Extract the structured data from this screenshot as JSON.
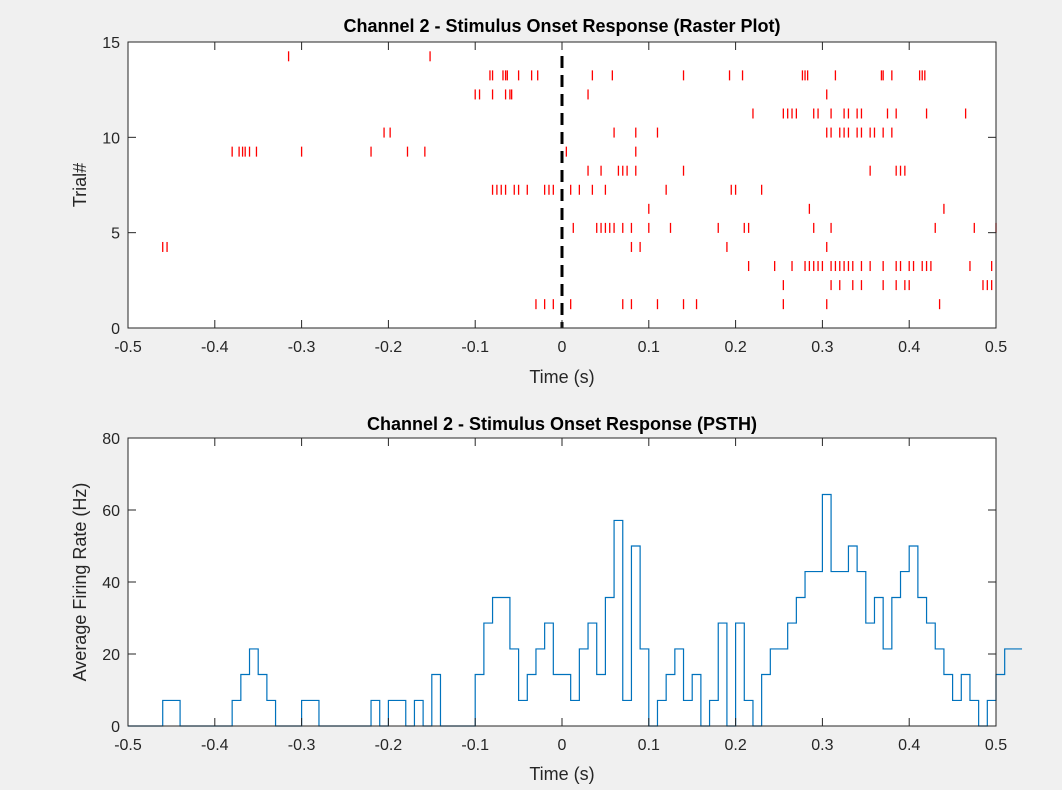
{
  "chart_data": [
    {
      "type": "scatter",
      "title": "Channel 2 - Stimulus Onset Response (Raster Plot)",
      "xlabel": "Time (s)",
      "ylabel": "Trial#",
      "xlim": [
        -0.5,
        0.5
      ],
      "ylim": [
        0,
        15
      ],
      "xticks": [
        "-0.5",
        "-0.4",
        "-0.3",
        "-0.2",
        "-0.1",
        "0",
        "0.1",
        "0.2",
        "0.3",
        "0.4",
        "0.5"
      ],
      "yticks": [
        "0",
        "5",
        "10",
        "15"
      ],
      "grid": false,
      "marker": "|",
      "marker_color": "#ff0000",
      "onset_line": {
        "x": 0,
        "style": "dashed",
        "color": "#000000"
      },
      "trials": [
        {
          "trial": 1,
          "spikes": [
            -0.03,
            -0.02,
            -0.01,
            0.01,
            0.07,
            0.08,
            0.11,
            0.14,
            0.155,
            0.255,
            0.305,
            0.435
          ]
        },
        {
          "trial": 2,
          "spikes": [
            0.255,
            0.31,
            0.32,
            0.335,
            0.345,
            0.37,
            0.385,
            0.395,
            0.4,
            0.485,
            0.49,
            0.495
          ]
        },
        {
          "trial": 3,
          "spikes": [
            0.215,
            0.245,
            0.265,
            0.28,
            0.285,
            0.29,
            0.295,
            0.3,
            0.31,
            0.315,
            0.32,
            0.325,
            0.33,
            0.335,
            0.345,
            0.355,
            0.37,
            0.385,
            0.39,
            0.4,
            0.405,
            0.415,
            0.42,
            0.425,
            0.47,
            0.495
          ]
        },
        {
          "trial": 4,
          "spikes": [
            -0.46,
            -0.455,
            0.08,
            0.09,
            0.19,
            0.305
          ]
        },
        {
          "trial": 5,
          "spikes": [
            0.013,
            0.04,
            0.045,
            0.05,
            0.055,
            0.06,
            0.07,
            0.08,
            0.1,
            0.125,
            0.18,
            0.21,
            0.215,
            0.29,
            0.31,
            0.43,
            0.475,
            0.5
          ]
        },
        {
          "trial": 6,
          "spikes": [
            0.1,
            0.285,
            0.44
          ]
        },
        {
          "trial": 7,
          "spikes": [
            -0.08,
            -0.075,
            -0.07,
            -0.065,
            -0.055,
            -0.05,
            -0.04,
            -0.02,
            -0.015,
            -0.01,
            0.01,
            0.02,
            0.035,
            0.05,
            0.12,
            0.195,
            0.2,
            0.23
          ]
        },
        {
          "trial": 8,
          "spikes": [
            0.03,
            0.045,
            0.065,
            0.07,
            0.075,
            0.085,
            0.14,
            0.355,
            0.385,
            0.39,
            0.395
          ]
        },
        {
          "trial": 9,
          "spikes": [
            -0.38,
            -0.372,
            -0.368,
            -0.365,
            -0.36,
            -0.352,
            -0.3,
            -0.22,
            -0.178,
            -0.158,
            0.005,
            0.085
          ]
        },
        {
          "trial": 10,
          "spikes": [
            -0.205,
            -0.198,
            0.06,
            0.085,
            0.11,
            0.305,
            0.31,
            0.32,
            0.325,
            0.33,
            0.34,
            0.345,
            0.355,
            0.36,
            0.37,
            0.38
          ]
        },
        {
          "trial": 11,
          "spikes": [
            0.22,
            0.255,
            0.26,
            0.265,
            0.27,
            0.29,
            0.295,
            0.31,
            0.325,
            0.33,
            0.34,
            0.345,
            0.375,
            0.385,
            0.42,
            0.465
          ]
        },
        {
          "trial": 12,
          "spikes": [
            -0.1,
            -0.095,
            -0.08,
            -0.065,
            -0.06,
            -0.058,
            0.03,
            0.305
          ]
        },
        {
          "trial": 13,
          "spikes": [
            -0.083,
            -0.08,
            -0.068,
            -0.065,
            -0.063,
            -0.05,
            -0.035,
            -0.028,
            0.035,
            0.058,
            0.14,
            0.193,
            0.208,
            0.277,
            0.28,
            0.283,
            0.315,
            0.368,
            0.37,
            0.38,
            0.412,
            0.415,
            0.418
          ]
        },
        {
          "trial": 14,
          "spikes": [
            -0.315,
            -0.152
          ]
        }
      ]
    },
    {
      "type": "line",
      "style": "stairs",
      "title": "Channel 2 - Stimulus Onset Response (PSTH)",
      "xlabel": "Time (s)",
      "ylabel": "Average Firing Rate (Hz)",
      "xlim": [
        -0.5,
        0.5
      ],
      "ylim": [
        0,
        80
      ],
      "xticks": [
        "-0.5",
        "-0.4",
        "-0.3",
        "-0.2",
        "-0.1",
        "0",
        "0.1",
        "0.2",
        "0.3",
        "0.4",
        "0.5"
      ],
      "yticks": [
        "0",
        "20",
        "40",
        "60",
        "80"
      ],
      "grid": false,
      "line_color": "#0072bd",
      "bin_width": 0.01,
      "x_start": -0.48,
      "values": [
        0,
        0,
        7.1,
        7.1,
        0,
        0,
        0,
        0,
        0,
        0,
        7.1,
        14.3,
        21.4,
        14.3,
        7.1,
        0,
        0,
        0,
        7.1,
        7.1,
        0,
        0,
        0,
        0,
        0,
        0,
        7.1,
        0,
        7.1,
        7.1,
        0,
        7.1,
        0,
        14.3,
        0,
        0,
        0,
        0,
        14.3,
        28.6,
        35.7,
        35.7,
        21.4,
        7.1,
        14.3,
        21.4,
        28.6,
        14.3,
        14.3,
        7.1,
        21.4,
        28.6,
        14.3,
        35.7,
        57.1,
        7.1,
        50,
        21.4,
        0,
        7.1,
        14.3,
        21.4,
        7.1,
        14.3,
        0,
        7.1,
        28.6,
        0,
        28.6,
        7.1,
        0,
        14.3,
        21.4,
        21.4,
        28.6,
        35.7,
        42.9,
        42.9,
        64.3,
        42.9,
        42.9,
        50,
        42.9,
        28.6,
        35.7,
        21.4,
        35.7,
        42.9,
        50,
        35.7,
        28.6,
        21.4,
        14.3,
        7.1,
        14.3,
        7.1,
        0,
        7.1,
        14.3,
        21.4,
        21.4
      ]
    }
  ]
}
